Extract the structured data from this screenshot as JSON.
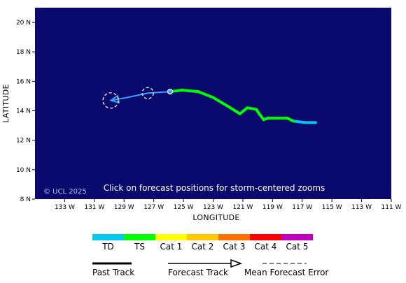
{
  "map": {
    "copyright": "© UCL 2025",
    "note": "Click on forecast positions for storm-centered zooms",
    "x_title": "LONGITUDE",
    "y_title": "LATITUDE",
    "background": "#0a0a6e",
    "lat_ticks": [
      "20 N",
      "18 N",
      "16 N",
      "14 N",
      "12 N",
      "10 N",
      "8 N"
    ],
    "lon_ticks": [
      "133 W",
      "131 W",
      "129 W",
      "127 W",
      "125 W",
      "123 W",
      "121 W",
      "119 W",
      "117 W",
      "115 W",
      "113 W",
      "111 W"
    ]
  },
  "track": {
    "past_track": [
      {
        "lon": -116.1,
        "lat": 13.2,
        "cat": "TD"
      },
      {
        "lon": -116.8,
        "lat": 13.2,
        "cat": "TD"
      },
      {
        "lon": -117.6,
        "lat": 13.3,
        "cat": "TD"
      },
      {
        "lon": -118.0,
        "lat": 13.5,
        "cat": "TS"
      },
      {
        "lon": -118.7,
        "lat": 13.5,
        "cat": "TS"
      },
      {
        "lon": -119.3,
        "lat": 13.5,
        "cat": "TS"
      },
      {
        "lon": -119.6,
        "lat": 13.4,
        "cat": "TS"
      },
      {
        "lon": -119.9,
        "lat": 13.8,
        "cat": "TS"
      },
      {
        "lon": -120.1,
        "lat": 14.1,
        "cat": "TS"
      },
      {
        "lon": -120.7,
        "lat": 14.2,
        "cat": "TS"
      },
      {
        "lon": -121.2,
        "lat": 13.8,
        "cat": "TS"
      },
      {
        "lon": -122.0,
        "lat": 14.3,
        "cat": "TS"
      },
      {
        "lon": -123.0,
        "lat": 14.9,
        "cat": "TS"
      },
      {
        "lon": -124.0,
        "lat": 15.3,
        "cat": "TS"
      },
      {
        "lon": -125.1,
        "lat": 15.4,
        "cat": "TS"
      },
      {
        "lon": -125.9,
        "lat": 15.3,
        "cat": "TS"
      }
    ],
    "forecast_track": [
      {
        "lon": -125.9,
        "lat": 15.3
      },
      {
        "lon": -127.4,
        "lat": 15.2
      },
      {
        "lon": -128.8,
        "lat": 14.9
      },
      {
        "lon": -129.9,
        "lat": 14.7
      }
    ],
    "error_circles": [
      {
        "lon": -127.4,
        "lat": 15.2
      },
      {
        "lon": -129.9,
        "lat": 14.7
      }
    ],
    "current_position": {
      "lon": -125.9,
      "lat": 15.3
    }
  },
  "legend": {
    "categories": [
      {
        "label": "TD",
        "color": "#00c8f0"
      },
      {
        "label": "TS",
        "color": "#00ff00"
      },
      {
        "label": "Cat 1",
        "color": "#ffff00"
      },
      {
        "label": "Cat 2",
        "color": "#ffc800"
      },
      {
        "label": "Cat 3",
        "color": "#ff7000"
      },
      {
        "label": "Cat 4",
        "color": "#ff0000"
      },
      {
        "label": "Cat 5",
        "color": "#c000c0"
      }
    ],
    "keys": {
      "past": "Past Track",
      "forecast": "Forecast Track",
      "error": "Mean Forecast Error"
    }
  },
  "colors": {
    "forecast_line": "#3ca0ff",
    "forecast_marker": "#3ca0ff",
    "error_circle": "#ffffff"
  }
}
